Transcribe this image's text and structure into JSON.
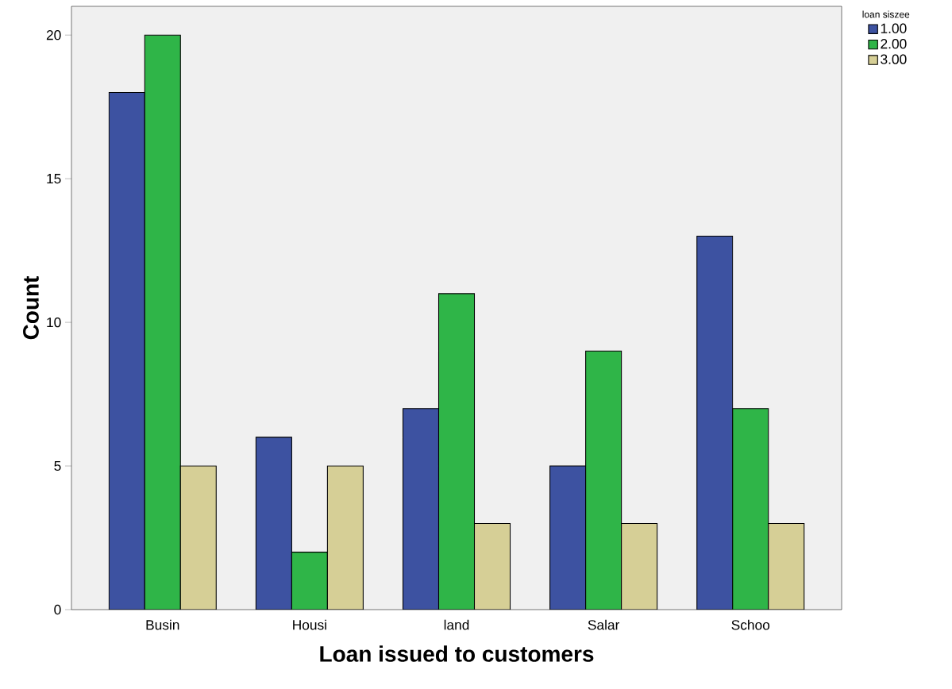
{
  "chart_data": {
    "type": "bar",
    "xlabel": "Loan issued to customers",
    "ylabel": "Count",
    "legend_title": "loan siszee",
    "categories": [
      "Busin",
      "Housi",
      "land",
      "Salar",
      "Schoo"
    ],
    "series": [
      {
        "name": "1.00",
        "color": "#3d52a1",
        "values": [
          18,
          6,
          7,
          5,
          13
        ]
      },
      {
        "name": "2.00",
        "color": "#2fb548",
        "values": [
          20,
          2,
          11,
          9,
          7
        ]
      },
      {
        "name": "3.00",
        "color": "#d6cf96",
        "values": [
          5,
          5,
          3,
          3,
          3
        ]
      }
    ],
    "ylim": [
      0,
      21
    ],
    "yticks": [
      0,
      5,
      10,
      15,
      20
    ],
    "legend": "top right",
    "grid": false
  }
}
